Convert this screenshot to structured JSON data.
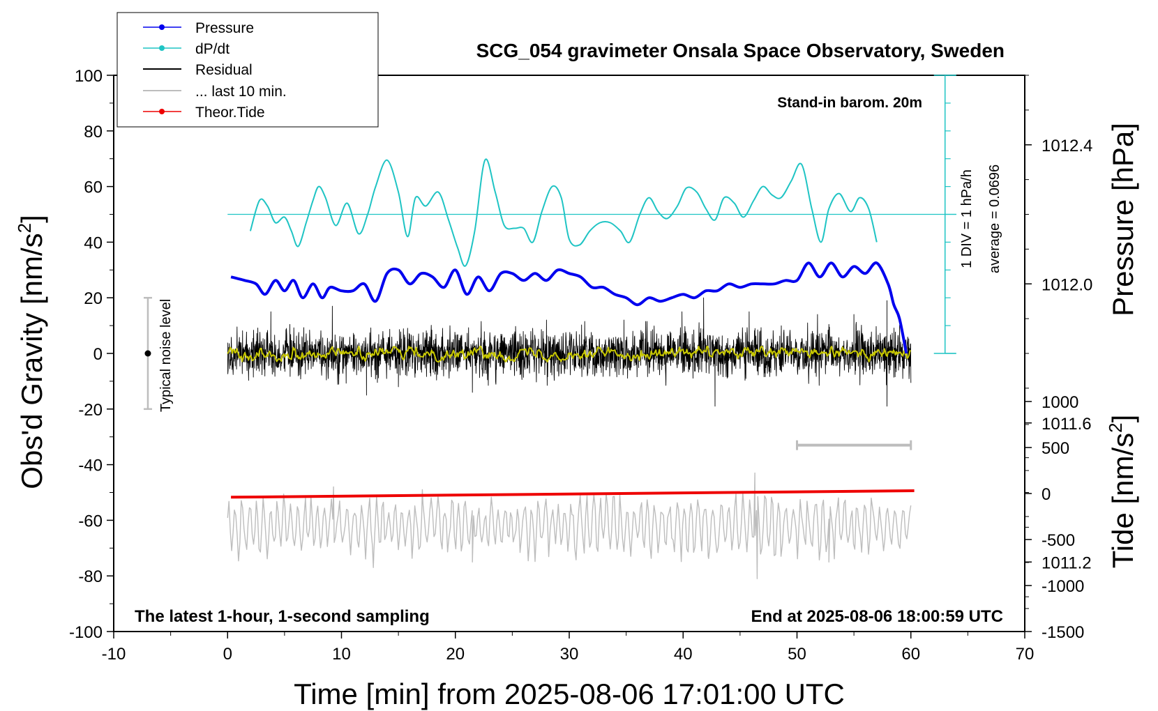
{
  "chart_data": {
    "type": "line",
    "title": "SCG_054 gravimeter Onsala Space Observatory, Sweden",
    "xlabel": "Time [min] from 2025-08-06 17:01:00 UTC",
    "ylabel": "Obs'd Gravity [nm/s",
    "ylabel_sup": "2",
    "ylabel_close": "]",
    "y2label": "Pressure [hPa]",
    "y3label": "Tide [nm/s",
    "y3label_sup": "2",
    "y3label_close": "]",
    "xlim": [
      -10,
      70
    ],
    "ylim": [
      -100,
      100
    ],
    "pressure_lim": [
      1011.0,
      1012.6
    ],
    "tide_lim": [
      -1500,
      1000
    ],
    "xticks": [
      -10,
      0,
      10,
      20,
      30,
      40,
      50,
      60,
      70
    ],
    "yticks": [
      -100,
      -80,
      -60,
      -40,
      -20,
      0,
      20,
      40,
      60,
      80,
      100
    ],
    "pressure_ticks": [
      "1011.2",
      "1011.6",
      "1012.0",
      "1012.4"
    ],
    "tide_ticks": [
      1000,
      500,
      0,
      -500,
      -1000,
      -1500
    ],
    "annotations": {
      "barometer": "Stand-in barom. 20m",
      "div_label": "1 DIV = 1 hPa/h",
      "average_label": "average = 0.0696",
      "noise_label": "Typical noise level",
      "bottom_left": "The latest 1-hour, 1-second sampling",
      "bottom_right": "End at 2025-08-06 18:00:59 UTC"
    },
    "legend": {
      "position": "top-left",
      "entries": [
        "Pressure",
        "dP/dt",
        "Residual",
        "... last 10 min.",
        "Theor.Tide"
      ]
    },
    "colors": {
      "pressure": "#0000ee",
      "dpdt": "#1fc4c4",
      "residual": "#000000",
      "residual_smooth": "#c8c800",
      "last10": "#bdbdbd",
      "tide": "#ee0000"
    },
    "series": [
      {
        "name": "Pressure",
        "units": "hPa",
        "x": [
          0.3,
          1.5,
          2.5,
          3.3,
          4.2,
          5,
          5.8,
          6.6,
          7.5,
          8.3,
          9,
          10,
          11,
          12,
          13,
          14,
          15,
          16,
          17,
          18,
          19,
          20,
          21,
          22,
          23,
          24,
          25,
          26,
          27,
          28,
          29,
          30,
          31,
          32,
          33,
          34,
          35,
          36,
          37,
          38,
          39,
          40,
          41,
          42,
          43,
          44,
          45,
          46,
          47,
          48,
          49,
          50,
          51,
          52,
          53,
          54,
          55,
          56,
          57,
          58,
          58.5,
          59,
          59.6
        ],
        "values": [
          1012.02,
          1012.01,
          1012.0,
          1011.97,
          1012.01,
          1011.98,
          1012.01,
          1011.96,
          1012.0,
          1011.96,
          1011.99,
          1011.98,
          1011.98,
          1012.0,
          1011.95,
          1012.03,
          1012.04,
          1012.0,
          1012.03,
          1012.02,
          1011.99,
          1012.04,
          1011.97,
          1012.02,
          1011.98,
          1012.03,
          1012.03,
          1012.01,
          1012.03,
          1012.01,
          1012.04,
          1012.03,
          1012.02,
          1011.99,
          1011.99,
          1011.97,
          1011.96,
          1011.94,
          1011.96,
          1011.95,
          1011.96,
          1011.97,
          1011.96,
          1011.98,
          1011.98,
          1012.0,
          1011.99,
          1012.0,
          1012.0,
          1012.0,
          1012.01,
          1012.01,
          1012.06,
          1012.02,
          1012.06,
          1012.02,
          1012.05,
          1012.03,
          1012.06,
          1012.0,
          1011.94,
          1011.9,
          1011.8
        ]
      },
      {
        "name": "dP/dt",
        "units": "nm/s2 display scale",
        "baseline": 50,
        "x": [
          2,
          2.8,
          3.5,
          4.2,
          5,
          5.6,
          6.2,
          6.9,
          7.5,
          8,
          8.6,
          9.5,
          10.5,
          11.5,
          12.3,
          13,
          14,
          15,
          15.8,
          16.5,
          17.4,
          18.5,
          19.4,
          20.2,
          20.9,
          21.7,
          22.6,
          23.5,
          24.3,
          25.2,
          26,
          26.8,
          27.6,
          28.5,
          29.3,
          30,
          30.9,
          31.8,
          32.7,
          33.6,
          34.5,
          35.3,
          36.2,
          37,
          37.8,
          38.6,
          39.5,
          40.3,
          41.2,
          42,
          42.8,
          43.6,
          44.5,
          45.3,
          46.2,
          47,
          47.8,
          48.6,
          49.5,
          50.4,
          51.3,
          52.1,
          52.8,
          53.7,
          54.7,
          55.5,
          56.3,
          57
        ],
        "values": [
          44,
          55,
          53,
          47,
          49,
          44,
          38.5,
          47,
          55,
          60,
          56,
          46,
          54,
          43,
          50,
          60,
          69.5,
          58,
          42,
          56,
          53,
          58,
          48,
          38,
          31.5,
          44,
          69.5,
          58,
          46,
          45,
          45,
          40,
          51,
          60,
          56,
          41,
          39,
          44,
          47,
          47,
          44,
          40,
          50,
          56,
          51,
          48.5,
          53,
          59.5,
          58,
          52,
          48,
          56,
          54,
          49,
          55,
          60,
          57,
          56,
          62,
          68,
          52,
          40,
          52,
          57.5,
          51,
          56,
          52,
          40
        ]
      },
      {
        "name": "Residual",
        "units": "nm/s2",
        "x_range": [
          0,
          60
        ],
        "envelope_amplitude": 10,
        "spikes": [
          [
            3.8,
            15
          ],
          [
            9.2,
            17
          ],
          [
            12.2,
            -15
          ],
          [
            15,
            -12
          ],
          [
            21.5,
            -14
          ],
          [
            28,
            12
          ],
          [
            34.8,
            12
          ],
          [
            39.9,
            15
          ],
          [
            41.8,
            20
          ],
          [
            42.8,
            -19
          ],
          [
            45.8,
            15
          ],
          [
            51.8,
            14
          ],
          [
            55,
            14
          ],
          [
            57.9,
            19
          ],
          [
            57.9,
            -19
          ]
        ]
      },
      {
        "name": "Residual (smoothed)",
        "units": "nm/s2",
        "x_range": [
          0,
          60
        ],
        "values_range": [
          -3,
          2.5
        ]
      },
      {
        "name": "... last 10 min.",
        "units": "nm/s2",
        "x_range": [
          0,
          60
        ],
        "center": -62,
        "amplitude_range": [
          -81,
          -43
        ],
        "horizontal_bar": {
          "x": [
            50,
            60
          ],
          "y": -33
        }
      },
      {
        "name": "Theor.Tide",
        "units": "nm/s2",
        "x": [
          0.3,
          60.3
        ],
        "values": [
          -40,
          30
        ]
      }
    ],
    "noise_bar": {
      "x": -7,
      "y": [
        -20,
        20
      ],
      "center": 0
    },
    "grid": false
  }
}
